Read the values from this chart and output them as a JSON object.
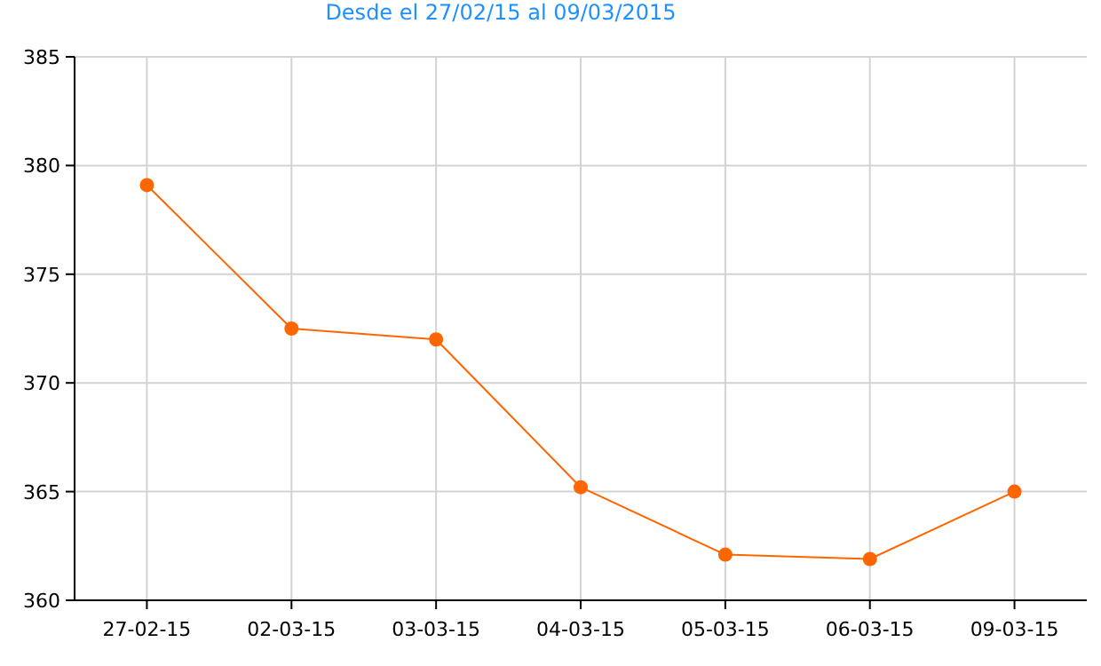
{
  "chart_data": {
    "type": "line",
    "title": "Desde el 27/02/15 al 09/03/2015",
    "categories": [
      "27-02-15",
      "02-03-15",
      "03-03-15",
      "04-03-15",
      "05-03-15",
      "06-03-15",
      "09-03-15"
    ],
    "series": [
      {
        "color": "#ff6600",
        "values": [
          379.1,
          372.5,
          372.0,
          365.2,
          362.1,
          361.9,
          365.0
        ]
      }
    ],
    "ylim": [
      360,
      385
    ],
    "yticks": [
      360,
      365,
      370,
      375,
      380,
      385
    ],
    "grid": true,
    "marker": "circle",
    "line_style": "solid"
  }
}
